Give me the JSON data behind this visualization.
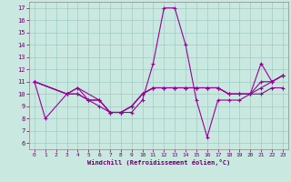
{
  "xlabel": "Windchill (Refroidissement éolien,°C)",
  "x_ticks": [
    0,
    1,
    2,
    3,
    4,
    5,
    6,
    7,
    8,
    9,
    10,
    11,
    12,
    13,
    14,
    15,
    16,
    17,
    18,
    19,
    20,
    21,
    22,
    23
  ],
  "y_ticks": [
    6,
    7,
    8,
    9,
    10,
    11,
    12,
    13,
    14,
    15,
    16,
    17
  ],
  "ylim": [
    5.5,
    17.5
  ],
  "xlim": [
    -0.5,
    23.5
  ],
  "bg_color": "#c8e8e0",
  "plot_bg": "#c8e8e0",
  "line_color": "#990099",
  "grid_color": "#a0ccc4",
  "tick_color": "#660066",
  "label_color": "#660066",
  "s1_x": [
    0,
    1,
    3,
    4,
    6,
    7,
    8,
    9,
    10,
    11,
    12,
    13,
    14,
    15,
    16,
    17,
    18,
    19,
    20,
    21,
    22,
    23
  ],
  "s1_y": [
    11,
    8,
    10,
    10.5,
    9.5,
    8.5,
    8.5,
    8.5,
    9.5,
    12.5,
    17,
    17,
    14,
    9.5,
    6.5,
    9.5,
    9.5,
    9.5,
    10,
    12.5,
    11,
    11.5
  ],
  "s2_x": [
    0,
    3,
    4,
    5,
    6,
    7,
    8,
    9,
    10,
    11,
    12,
    13,
    14,
    15,
    16,
    17,
    18,
    19,
    20,
    21,
    22,
    23
  ],
  "s2_y": [
    11,
    10,
    10,
    9.5,
    9.5,
    8.5,
    8.5,
    9,
    10,
    10.5,
    10.5,
    10.5,
    10.5,
    10.5,
    10.5,
    10.5,
    10,
    10,
    10,
    10,
    10.5,
    10.5
  ],
  "s3_x": [
    0,
    3,
    4,
    5,
    6,
    7,
    8,
    9,
    10,
    11,
    12,
    13,
    14,
    15,
    16,
    17,
    18,
    19,
    20,
    21,
    22,
    23
  ],
  "s3_y": [
    11,
    10,
    10,
    9.5,
    9.5,
    8.5,
    8.5,
    9,
    10,
    10.5,
    10.5,
    10.5,
    10.5,
    10.5,
    10.5,
    10.5,
    10,
    10,
    10,
    11,
    11,
    11.5
  ],
  "s4_x": [
    0,
    3,
    4,
    5,
    6,
    7,
    8,
    9,
    10,
    11,
    12,
    13,
    14,
    15,
    16,
    17,
    18,
    19,
    20,
    21,
    22,
    23
  ],
  "s4_y": [
    11,
    10,
    10.5,
    9.5,
    9,
    8.5,
    8.5,
    9,
    10,
    10.5,
    10.5,
    10.5,
    10.5,
    10.5,
    10.5,
    10.5,
    10,
    10,
    10,
    10.5,
    11,
    11.5
  ]
}
